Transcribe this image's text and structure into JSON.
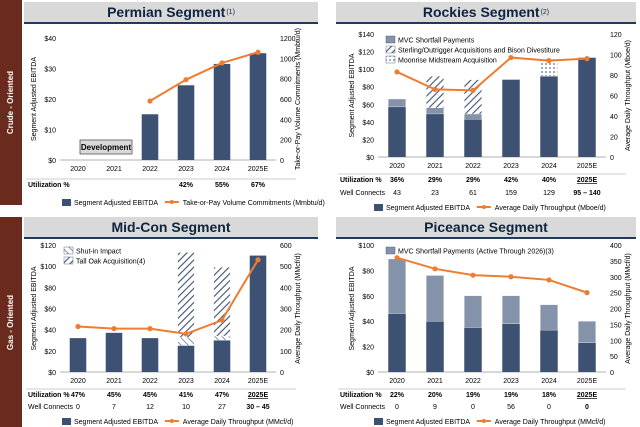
{
  "side_labels": {
    "top": "Crude - Oriented",
    "bottom": "Gas - Oriented"
  },
  "colors": {
    "bar": "#3d5272",
    "bar_light": "#8593aa",
    "line": "#ef7d31",
    "hatch": "#3d5272"
  },
  "chart_data": [
    {
      "id": "permian",
      "type": "bar+line",
      "title": "Permian Segment",
      "title_note": "(1)",
      "categories": [
        "2020",
        "2021",
        "2022",
        "2023",
        "2024",
        "2025E"
      ],
      "ylabel_left": "Segment Adjusted EBITDA",
      "ylim_left": [
        0,
        40
      ],
      "yticks_left": [
        "$0",
        "$10",
        "$20",
        "$30",
        "$40"
      ],
      "ylabel_right": "Take-or-Pay Volume Commitments (Mmbtu/d)",
      "ylim_right": [
        0,
        1200
      ],
      "yticks_right": [
        "0",
        "200",
        "400",
        "600",
        "800",
        "1000",
        "1200"
      ],
      "series": [
        {
          "name": "Segment Adjusted EBITDA",
          "kind": "bar",
          "values": [
            0,
            0,
            15,
            24.5,
            31.5,
            35
          ]
        },
        {
          "name": "Take-or-Pay Volume Commitments (Mmbtu/d)",
          "kind": "line",
          "values": [
            null,
            null,
            580,
            790,
            955,
            1060
          ]
        }
      ],
      "annotation": "Development",
      "rows": [
        {
          "label": "Utilization %",
          "values": [
            "",
            "",
            "",
            "42%",
            "55%",
            "67%"
          ]
        }
      ]
    },
    {
      "id": "rockies",
      "type": "stacked-bar+line",
      "title": "Rockies Segment",
      "title_note": "(2)",
      "categories": [
        "2020",
        "2021",
        "2022",
        "2023",
        "2024",
        "2025E"
      ],
      "ylabel_left": "Segment Adjusted EBITDA",
      "ylim_left": [
        0,
        140
      ],
      "yticks_left": [
        "$0",
        "$20",
        "$40",
        "$60",
        "$80",
        "$100",
        "$120",
        "$140"
      ],
      "ylabel_right": "Average Daily Throughput (Mboe/d)",
      "ylim_right": [
        0,
        120
      ],
      "yticks_right": [
        "0",
        "20",
        "40",
        "60",
        "80",
        "100",
        "120"
      ],
      "series": [
        {
          "name": "Segment Adjusted EBITDA",
          "kind": "bar",
          "values": [
            57,
            49,
            43,
            88,
            92,
            113
          ]
        },
        {
          "name": "MVC Shortfall Payments",
          "kind": "bar",
          "pattern": "light",
          "values": [
            9,
            7,
            6,
            0,
            0,
            0
          ]
        },
        {
          "name": "Sterling/Outrigger Acquisitions and Bison Divestiture",
          "kind": "bar",
          "pattern": "hatch",
          "values": [
            0,
            36,
            39,
            0,
            0,
            0
          ]
        },
        {
          "name": "Moonrise Midstream Acquisition",
          "kind": "bar",
          "pattern": "dots",
          "values": [
            0,
            0,
            0,
            0,
            20,
            0
          ]
        },
        {
          "name": "Average Daily Throughput (Mboe/d)",
          "kind": "line",
          "values": [
            83,
            66,
            65,
            97,
            94,
            96
          ]
        }
      ],
      "legend": [
        "MVC Shortfall Payments",
        "Sterling/Outrigger Acquisitions and Bison Divestiture",
        "Moonrise Midstream Acquisition"
      ],
      "rows": [
        {
          "label": "Utilization %",
          "values": [
            "36%",
            "29%",
            "29%",
            "42%",
            "40%",
            "2025E"
          ]
        },
        {
          "label": "Well Connects",
          "values": [
            "43",
            "23",
            "61",
            "159",
            "129",
            "95 – 140"
          ]
        }
      ]
    },
    {
      "id": "midcon",
      "type": "stacked-bar+line",
      "title": "Mid-Con Segment",
      "title_note": "",
      "categories": [
        "2020",
        "2021",
        "2022",
        "2023",
        "2024",
        "2025E"
      ],
      "ylabel_left": "Segment Adjusted EBITDA",
      "ylim_left": [
        0,
        120
      ],
      "yticks_left": [
        "$0",
        "$20",
        "$40",
        "$60",
        "$80",
        "$100",
        "$120"
      ],
      "ylabel_right": "Average Daily Throughput (MMcf/d)",
      "ylim_right": [
        0,
        600
      ],
      "yticks_right": [
        "0",
        "100",
        "200",
        "300",
        "400",
        "500",
        "600"
      ],
      "series": [
        {
          "name": "Segment Adjusted EBITDA",
          "kind": "bar",
          "values": [
            32,
            37,
            32,
            25,
            30,
            110
          ]
        },
        {
          "name": "Shut-in Impact",
          "kind": "bar",
          "pattern": "hatch-light",
          "values": [
            0,
            0,
            0,
            8,
            4,
            0
          ]
        },
        {
          "name": "Tall Oak Acquisition",
          "kind": "bar",
          "pattern": "hatch",
          "values": [
            0,
            0,
            0,
            80,
            65,
            0
          ]
        },
        {
          "name": "Average Daily Throughput (MMcf/d)",
          "kind": "line",
          "values": [
            215,
            205,
            205,
            180,
            245,
            530
          ]
        }
      ],
      "legend": [
        "Shut-in Impact",
        "Tall Oak Acquisition"
      ],
      "legend_note": "(4)",
      "rows": [
        {
          "label": "Utilization %",
          "values": [
            "47%",
            "45%",
            "45%",
            "41%",
            "47%",
            "2025E"
          ]
        },
        {
          "label": "Well Connects",
          "values": [
            "0",
            "7",
            "12",
            "10",
            "27",
            "30 – 45"
          ]
        }
      ]
    },
    {
      "id": "piceance",
      "type": "stacked-bar+line",
      "title": "Piceance Segment",
      "title_note": "",
      "categories": [
        "2020",
        "2021",
        "2022",
        "2023",
        "2024",
        "2025E"
      ],
      "ylabel_left": "Segment Adjusted EBITDA",
      "ylim_left": [
        0,
        100
      ],
      "yticks_left": [
        "$0",
        "$20",
        "$40",
        "$60",
        "$80",
        "$100"
      ],
      "ylabel_right": "Average Daily Throughput (MMcf/d)",
      "ylim_right": [
        0,
        400
      ],
      "yticks_right": [
        "0",
        "50",
        "100",
        "150",
        "200",
        "250",
        "300",
        "350",
        "400"
      ],
      "series": [
        {
          "name": "Segment Adjusted EBITDA",
          "kind": "bar",
          "values": [
            46,
            40,
            35,
            38,
            33,
            23
          ]
        },
        {
          "name": "MVC Shortfall Payments (Active Through 2026)",
          "kind": "bar",
          "pattern": "light",
          "values": [
            43,
            36,
            25,
            22,
            20,
            17
          ]
        },
        {
          "name": "Average Daily Throughput (MMcf/d)",
          "kind": "line",
          "values": [
            360,
            325,
            305,
            300,
            290,
            250
          ]
        }
      ],
      "legend": [
        "MVC Shortfall Payments (Active Through 2026)"
      ],
      "legend_note": "(3)",
      "rows": [
        {
          "label": "Utilization %",
          "values": [
            "22%",
            "20%",
            "19%",
            "19%",
            "18%",
            "2025E"
          ]
        },
        {
          "label": "Well Connects",
          "values": [
            "0",
            "9",
            "0",
            "56",
            "0",
            "0"
          ]
        }
      ]
    }
  ],
  "footer_legends": {
    "permian": [
      "Segment Adjusted EBITDA",
      "Take-or-Pay Volume Commitments (Mmbtu/d)"
    ],
    "rockies": [
      "Segment Adjusted EBITDA",
      "Average Daily Throughput (Mboe/d)"
    ],
    "midcon": [
      "Segment Adjusted EBITDA",
      "Average Daily Throughput (MMcf/d)"
    ],
    "piceance": [
      "Segment Adjusted EBITDA",
      "Average Daily Throughput (MMcf/d)"
    ]
  }
}
